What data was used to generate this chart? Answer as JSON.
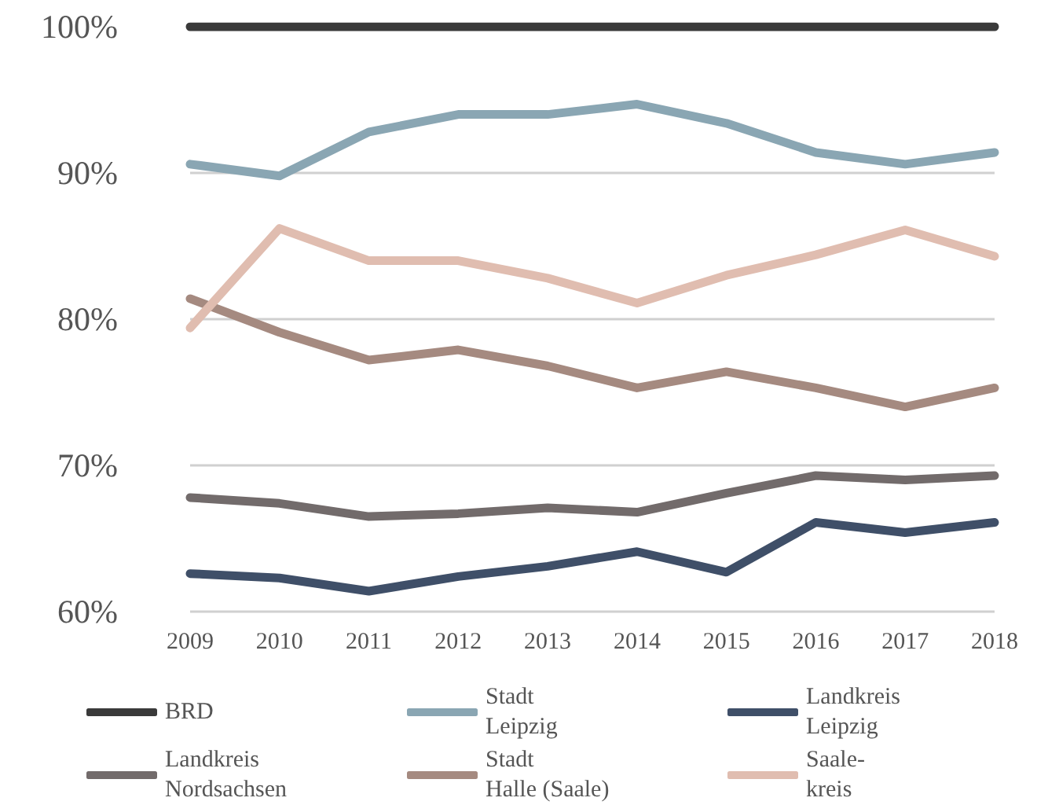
{
  "chart_data": {
    "type": "line",
    "categories": [
      "2009",
      "2010",
      "2011",
      "2012",
      "2013",
      "2014",
      "2015",
      "2016",
      "2017",
      "2018"
    ],
    "series": [
      {
        "name": "BRD",
        "color": "#3a3a3a",
        "values": [
          100,
          100,
          100,
          100,
          100,
          100,
          100,
          100,
          100,
          100
        ]
      },
      {
        "name": "Stadt Leipzig",
        "color": "#8aa6b3",
        "values": [
          90.6,
          89.8,
          92.8,
          94.0,
          94.0,
          94.7,
          93.4,
          91.4,
          90.6,
          91.4
        ]
      },
      {
        "name": "Landkreis Leipzig",
        "color": "#3f4f68",
        "values": [
          62.6,
          62.3,
          61.4,
          62.4,
          63.1,
          64.1,
          62.7,
          66.1,
          65.4,
          66.1
        ]
      },
      {
        "name": "Landkreis Nordsachsen",
        "color": "#726b6b",
        "values": [
          67.8,
          67.4,
          66.5,
          66.7,
          67.1,
          66.8,
          68.1,
          69.3,
          69.0,
          69.3
        ]
      },
      {
        "name": "Stadt Halle (Saale)",
        "color": "#a58a80",
        "values": [
          81.4,
          79.1,
          77.2,
          77.9,
          76.8,
          75.3,
          76.4,
          75.3,
          74.0,
          75.3
        ]
      },
      {
        "name": "Saale-kreis",
        "color": "#e0bdb0",
        "values": [
          79.4,
          86.2,
          84.0,
          84.0,
          82.8,
          81.1,
          83.0,
          84.4,
          86.1,
          84.3
        ]
      }
    ],
    "ylim": [
      60,
      100
    ],
    "yticks": [
      {
        "value": 60,
        "label": "60%"
      },
      {
        "value": 70,
        "label": "70%"
      },
      {
        "value": 80,
        "label": "80%"
      },
      {
        "value": 90,
        "label": "90%"
      },
      {
        "value": 100,
        "label": "100%"
      }
    ],
    "grid": "y",
    "legend": "bottom",
    "marker": "none",
    "line_style": "solid"
  }
}
